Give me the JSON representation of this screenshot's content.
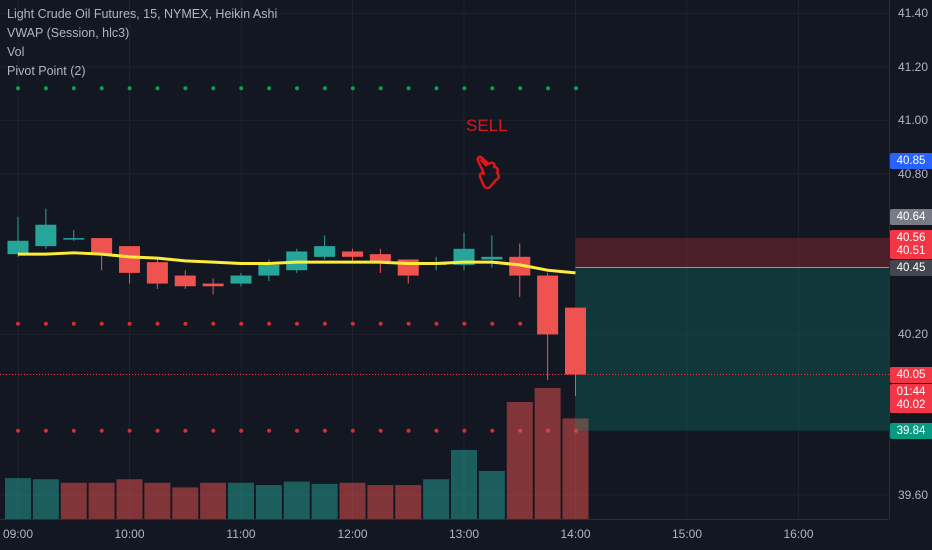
{
  "legend": {
    "symbol": "Light Crude Oil Futures, 15, NYMEX, Heikin Ashi",
    "vwap": "VWAP (Session, hlc3)",
    "vol": "Vol",
    "pivot": "Pivot Point (2)"
  },
  "annotation": {
    "sell_text": "SELL",
    "icon": "pointing-hand-down-icon"
  },
  "y_axis": {
    "ticks": [
      "41.40",
      "41.20",
      "41.00",
      "40.80",
      "40.20",
      "39.60"
    ]
  },
  "x_axis": {
    "ticks": [
      "09:00",
      "10:00",
      "11:00",
      "12:00",
      "13:00",
      "14:00",
      "15:00",
      "16:00"
    ]
  },
  "price_badges": [
    {
      "label": "40.85",
      "value": 40.85,
      "color": "#2962ff"
    },
    {
      "label": "40.64",
      "value": 40.64,
      "color": "#787b86"
    },
    {
      "label": "40.56",
      "value": 40.56,
      "color": "#f23645"
    },
    {
      "label": "40.51",
      "value": 40.51,
      "color": "#f23645"
    },
    {
      "label": "40.45",
      "value": 40.45,
      "color": "#434651"
    },
    {
      "label": "40.05",
      "value": 40.05,
      "color": "#f23645"
    },
    {
      "label": "01:44",
      "value": 39.985,
      "color": "#f23645"
    },
    {
      "label": "40.02",
      "value": 39.935,
      "color": "#f23645"
    },
    {
      "label": "39.84",
      "value": 39.84,
      "color": "#089981"
    }
  ],
  "colors": {
    "up": "#26a69a",
    "down": "#ef5350",
    "vwap": "#ffeb3b",
    "pivot_upper": "#00a651",
    "pivot_mid": "#d32f2f",
    "pivot_lower": "#d32f2f",
    "bg": "#131722"
  },
  "chart_data": {
    "type": "candlestick",
    "style": "Heikin Ashi",
    "interval": "15",
    "x_times": [
      "09:00",
      "09:15",
      "09:30",
      "09:45",
      "10:00",
      "10:15",
      "10:30",
      "10:45",
      "11:00",
      "11:15",
      "11:30",
      "11:45",
      "12:00",
      "12:15",
      "12:30",
      "12:45",
      "13:00",
      "13:15",
      "13:30",
      "13:45",
      "14:00"
    ],
    "candles": [
      {
        "o": 40.5,
        "h": 40.64,
        "l": 40.49,
        "c": 40.55
      },
      {
        "o": 40.53,
        "h": 40.67,
        "l": 40.52,
        "c": 40.61
      },
      {
        "o": 40.56,
        "h": 40.59,
        "l": 40.55,
        "c": 40.56
      },
      {
        "o": 40.56,
        "h": 40.56,
        "l": 40.44,
        "c": 40.5
      },
      {
        "o": 40.53,
        "h": 40.53,
        "l": 40.39,
        "c": 40.43
      },
      {
        "o": 40.47,
        "h": 40.48,
        "l": 40.37,
        "c": 40.39
      },
      {
        "o": 40.42,
        "h": 40.44,
        "l": 40.37,
        "c": 40.38
      },
      {
        "o": 40.39,
        "h": 40.41,
        "l": 40.35,
        "c": 40.38
      },
      {
        "o": 40.39,
        "h": 40.43,
        "l": 40.38,
        "c": 40.42
      },
      {
        "o": 40.42,
        "h": 40.48,
        "l": 40.4,
        "c": 40.46
      },
      {
        "o": 40.44,
        "h": 40.52,
        "l": 40.43,
        "c": 40.51
      },
      {
        "o": 40.49,
        "h": 40.57,
        "l": 40.48,
        "c": 40.53
      },
      {
        "o": 40.51,
        "h": 40.52,
        "l": 40.47,
        "c": 40.49
      },
      {
        "o": 40.5,
        "h": 40.52,
        "l": 40.43,
        "c": 40.47
      },
      {
        "o": 40.48,
        "h": 40.48,
        "l": 40.39,
        "c": 40.42
      },
      {
        "o": 40.46,
        "h": 40.49,
        "l": 40.44,
        "c": 40.47
      },
      {
        "o": 40.46,
        "h": 40.58,
        "l": 40.44,
        "c": 40.52
      },
      {
        "o": 40.48,
        "h": 40.57,
        "l": 40.45,
        "c": 40.49
      },
      {
        "o": 40.49,
        "h": 40.54,
        "l": 40.34,
        "c": 40.42
      },
      {
        "o": 40.42,
        "h": 40.43,
        "l": 40.03,
        "c": 40.2
      },
      {
        "o": 40.3,
        "h": 40.3,
        "l": 39.97,
        "c": 40.05
      }
    ],
    "volume": [
      {
        "v": 0.35,
        "up": true
      },
      {
        "v": 0.34,
        "up": true
      },
      {
        "v": 0.31,
        "up": false
      },
      {
        "v": 0.31,
        "up": false
      },
      {
        "v": 0.34,
        "up": false
      },
      {
        "v": 0.31,
        "up": false
      },
      {
        "v": 0.27,
        "up": false
      },
      {
        "v": 0.31,
        "up": false
      },
      {
        "v": 0.31,
        "up": true
      },
      {
        "v": 0.29,
        "up": true
      },
      {
        "v": 0.32,
        "up": true
      },
      {
        "v": 0.3,
        "up": true
      },
      {
        "v": 0.31,
        "up": false
      },
      {
        "v": 0.29,
        "up": false
      },
      {
        "v": 0.29,
        "up": false
      },
      {
        "v": 0.34,
        "up": true
      },
      {
        "v": 0.59,
        "up": true
      },
      {
        "v": 0.41,
        "up": true
      },
      {
        "v": 1.0,
        "up": false
      },
      {
        "v": 1.12,
        "up": false
      },
      {
        "v": 0.86,
        "up": false
      }
    ],
    "vwap": [
      40.5,
      40.5,
      40.505,
      40.5,
      40.49,
      40.485,
      40.475,
      40.47,
      40.465,
      40.465,
      40.47,
      40.47,
      40.47,
      40.47,
      40.465,
      40.465,
      40.47,
      40.47,
      40.46,
      40.44,
      40.43
    ],
    "pivots": {
      "upper": 41.12,
      "mid": 40.24,
      "lower": 39.84
    },
    "pivot_x_range": [
      "09:00",
      "14:00"
    ],
    "position": {
      "entry": 40.45,
      "stop": 40.56,
      "target": 39.84
    },
    "last_price": 40.05,
    "ylim": [
      39.51,
      41.45
    ]
  }
}
